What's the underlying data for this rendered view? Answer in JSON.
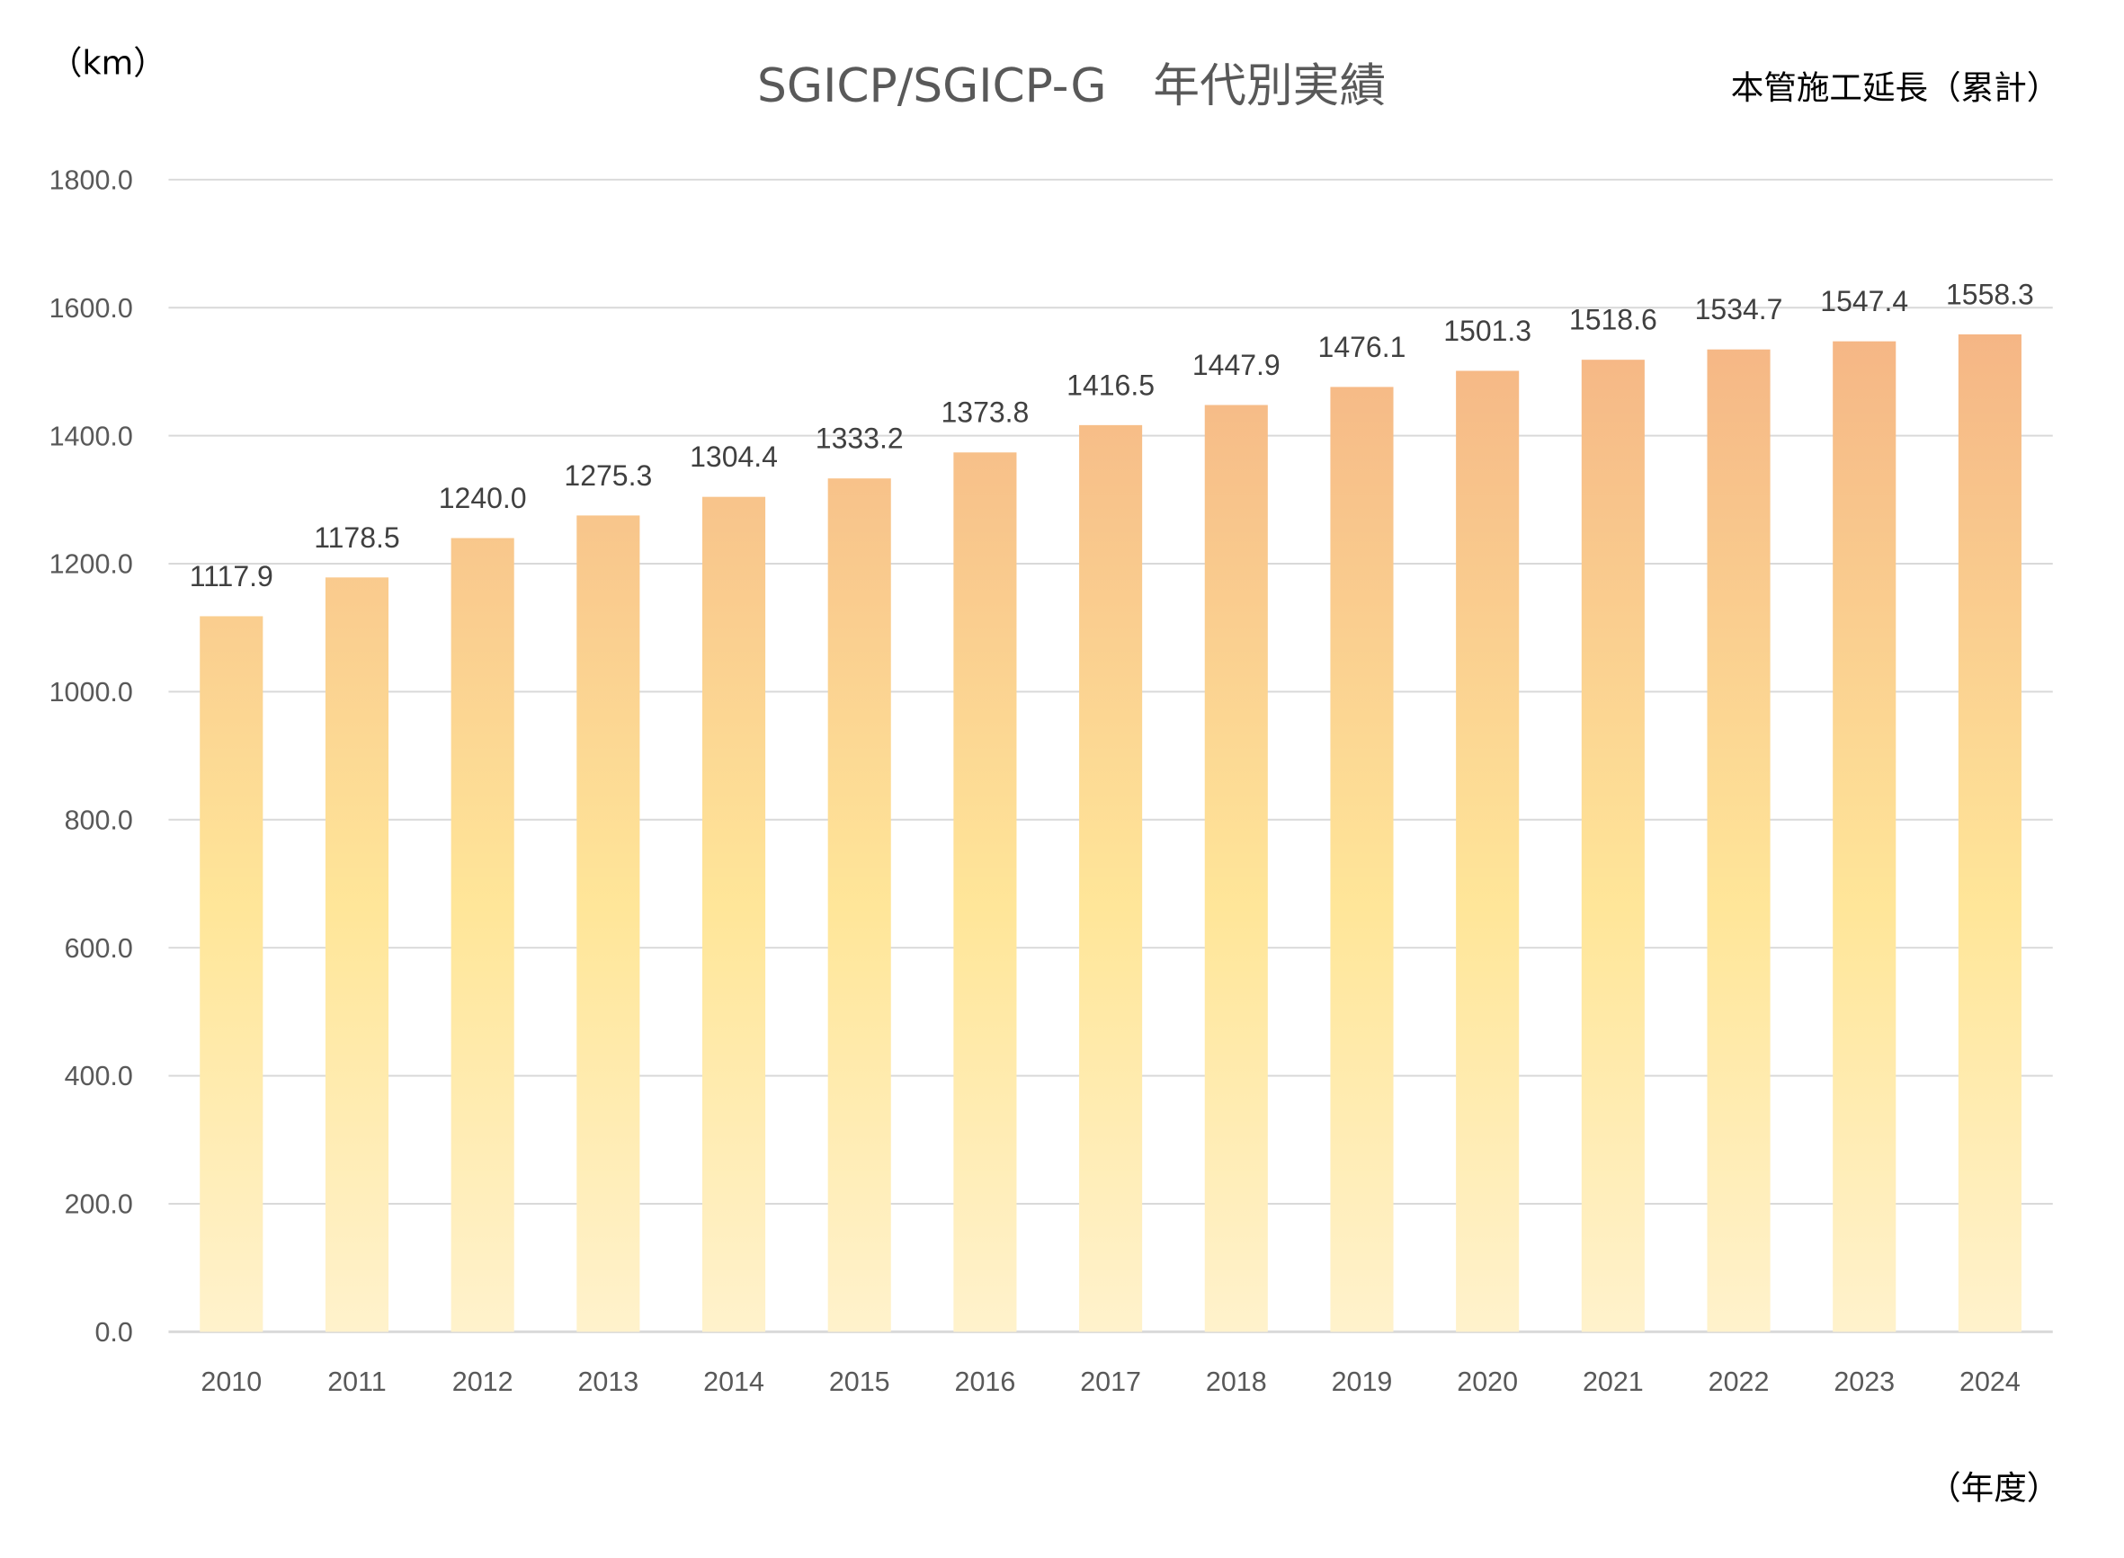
{
  "chart_data": {
    "type": "bar",
    "title": "SGICP/SGICP-G　年代別実績",
    "subtitle": "本管施工延長（累計）",
    "ylabel": "（km）",
    "xlabel": "（年度）",
    "categories": [
      "2010",
      "2011",
      "2012",
      "2013",
      "2014",
      "2015",
      "2016",
      "2017",
      "2018",
      "2019",
      "2020",
      "2021",
      "2022",
      "2023",
      "2024"
    ],
    "values": [
      1117.9,
      1178.5,
      1240.0,
      1275.3,
      1304.4,
      1333.2,
      1373.8,
      1416.5,
      1447.9,
      1476.1,
      1501.3,
      1518.6,
      1534.7,
      1547.4,
      1558.3
    ],
    "data_labels": [
      "1117.9",
      "1178.5",
      "1240.0",
      "1275.3",
      "1304.4",
      "1333.2",
      "1373.8",
      "1416.5",
      "1447.9",
      "1476.1",
      "1501.3",
      "1518.6",
      "1534.7",
      "1547.4",
      "1558.3"
    ],
    "ylim": [
      0,
      1800
    ],
    "yticks": [
      "0.0",
      "200.0",
      "400.0",
      "600.0",
      "800.0",
      "1000.0",
      "1200.0",
      "1400.0",
      "1600.0",
      "1800.0"
    ],
    "grid": true,
    "legend": "none",
    "colors": {
      "gradient_top": "#F4B183",
      "gradient_mid": "#FFE699",
      "gradient_bottom": "#FFF2CC",
      "grid": "#D9D9D9"
    }
  }
}
